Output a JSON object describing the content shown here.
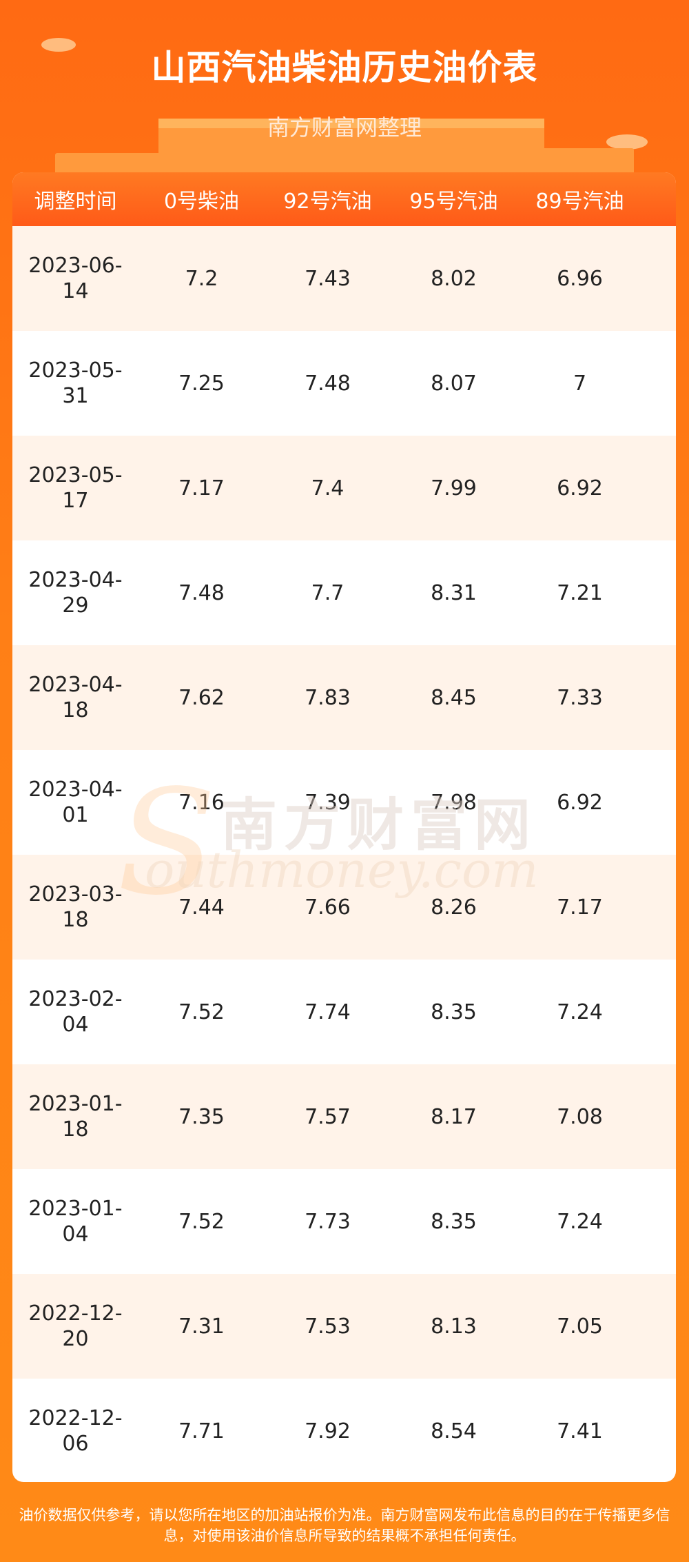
{
  "header": {
    "title": "山西汽油柴油历史油价表",
    "subtitle": "南方财富网整理"
  },
  "table": {
    "columns": [
      "调整时间",
      "0号柴油",
      "92号汽油",
      "95号汽油",
      "89号汽油"
    ],
    "rows": [
      {
        "date_line1": "2023-06-",
        "date_line2": "14",
        "v0": "7.2",
        "v92": "7.43",
        "v95": "8.02",
        "v89": "6.96"
      },
      {
        "date_line1": "2023-05-",
        "date_line2": "31",
        "v0": "7.25",
        "v92": "7.48",
        "v95": "8.07",
        "v89": "7"
      },
      {
        "date_line1": "2023-05-",
        "date_line2": "17",
        "v0": "7.17",
        "v92": "7.4",
        "v95": "7.99",
        "v89": "6.92"
      },
      {
        "date_line1": "2023-04-",
        "date_line2": "29",
        "v0": "7.48",
        "v92": "7.7",
        "v95": "8.31",
        "v89": "7.21"
      },
      {
        "date_line1": "2023-04-",
        "date_line2": "18",
        "v0": "7.62",
        "v92": "7.83",
        "v95": "8.45",
        "v89": "7.33"
      },
      {
        "date_line1": "2023-04-",
        "date_line2": "01",
        "v0": "7.16",
        "v92": "7.39",
        "v95": "7.98",
        "v89": "6.92"
      },
      {
        "date_line1": "2023-03-",
        "date_line2": "18",
        "v0": "7.44",
        "v92": "7.66",
        "v95": "8.26",
        "v89": "7.17"
      },
      {
        "date_line1": "2023-02-",
        "date_line2": "04",
        "v0": "7.52",
        "v92": "7.74",
        "v95": "8.35",
        "v89": "7.24"
      },
      {
        "date_line1": "2023-01-",
        "date_line2": "18",
        "v0": "7.35",
        "v92": "7.57",
        "v95": "8.17",
        "v89": "7.08"
      },
      {
        "date_line1": "2023-01-",
        "date_line2": "04",
        "v0": "7.52",
        "v92": "7.73",
        "v95": "8.35",
        "v89": "7.24"
      },
      {
        "date_line1": "2022-12-",
        "date_line2": "20",
        "v0": "7.31",
        "v92": "7.53",
        "v95": "8.13",
        "v89": "7.05"
      },
      {
        "date_line1": "2022-12-",
        "date_line2": "06",
        "v0": "7.71",
        "v92": "7.92",
        "v95": "8.54",
        "v89": "7.41"
      }
    ]
  },
  "watermark": {
    "cn": "南方财富网",
    "en": "outhmoney.com",
    "s": "S"
  },
  "footer": {
    "disclaimer_line1": "油价数据仅供参考，请以您所在地区的加油站报价为准。南方财富网发布此信息的目的在于传播更多信",
    "disclaimer_line2": "息，对使用该油价信息所导致的结果概不承担任何责任。"
  },
  "colors": {
    "background": "#ff7a16",
    "header_row": "#ff6a1e",
    "alt_row": "#fff3e9"
  }
}
